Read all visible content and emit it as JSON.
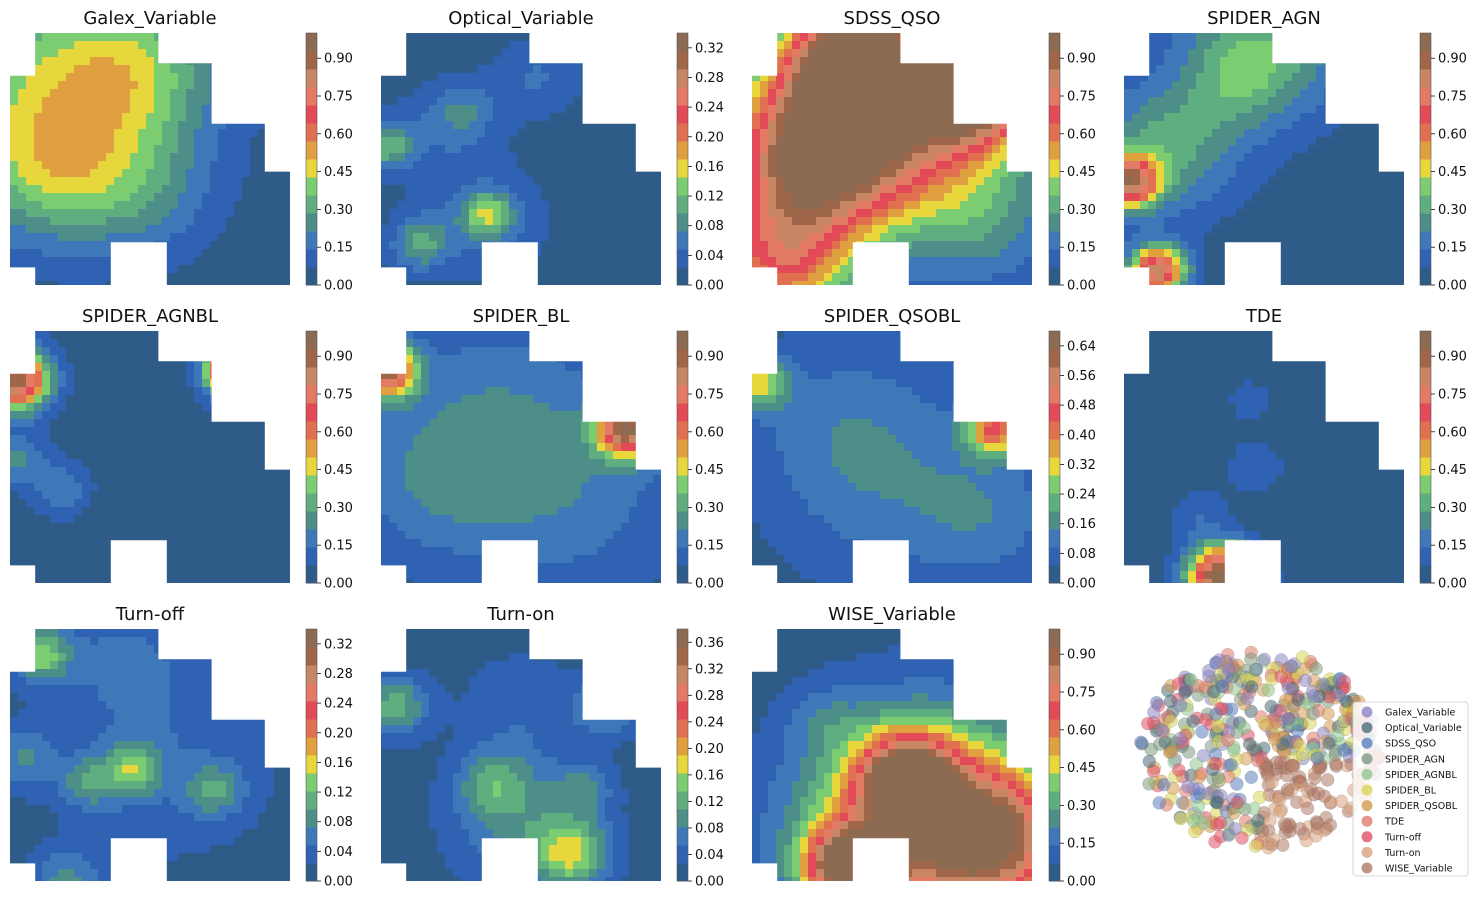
{
  "chart_data": [
    {
      "type": "heatmap",
      "title": "Galex_Variable",
      "colorbar_ticks": [
        "0.00",
        "0.15",
        "0.30",
        "0.45",
        "0.60",
        "0.75",
        "0.90"
      ],
      "vmax": 1.0,
      "hotspots": [
        [
          0.99,
          0.07,
          0.16,
          1.0
        ],
        [
          0.12,
          0.25,
          0.55,
          0.35
        ],
        [
          0.45,
          0.15,
          0.35,
          0.25
        ],
        [
          0.16,
          0.55,
          0.3,
          0.2
        ],
        [
          0.47,
          0.62,
          0.3,
          0.15
        ]
      ]
    },
    {
      "type": "heatmap",
      "title": "Optical_Variable",
      "colorbar_ticks": [
        "0.00",
        "0.04",
        "0.08",
        "0.12",
        "0.16",
        "0.20",
        "0.24",
        "0.28",
        "0.32"
      ],
      "vmax": 0.34,
      "hotspots": [
        [
          0.38,
          0.71,
          0.11,
          0.33
        ],
        [
          0.14,
          0.82,
          0.12,
          0.25
        ],
        [
          0.02,
          0.44,
          0.12,
          0.3
        ],
        [
          0.25,
          0.35,
          0.2,
          0.12
        ],
        [
          0.56,
          0.17,
          0.18,
          0.12
        ],
        [
          0.36,
          0.74,
          0.3,
          0.1
        ],
        [
          0.3,
          0.3,
          0.12,
          0.1
        ]
      ]
    },
    {
      "type": "heatmap",
      "title": "SDSS_QSO",
      "colorbar_ticks": [
        "0.00",
        "0.15",
        "0.30",
        "0.45",
        "0.60",
        "0.75",
        "0.90"
      ],
      "vmax": 1.0,
      "hotspots": [
        [
          0.5,
          0.3,
          0.5,
          0.8
        ],
        [
          0.8,
          0.18,
          0.25,
          1.0
        ],
        [
          0.2,
          0.5,
          0.35,
          0.7
        ],
        [
          0.85,
          0.75,
          0.3,
          0.15
        ],
        [
          0.1,
          0.9,
          0.3,
          0.55
        ],
        [
          0.35,
          0.12,
          0.25,
          0.75
        ]
      ]
    },
    {
      "type": "heatmap",
      "title": "SPIDER_AGN",
      "colorbar_ticks": [
        "0.00",
        "0.15",
        "0.30",
        "0.45",
        "0.60",
        "0.75",
        "0.90"
      ],
      "vmax": 1.0,
      "hotspots": [
        [
          0.02,
          0.58,
          0.12,
          0.75
        ],
        [
          0.12,
          0.93,
          0.12,
          0.8
        ],
        [
          0.15,
          0.45,
          0.3,
          0.28
        ],
        [
          0.5,
          0.05,
          0.35,
          0.3
        ],
        [
          0.4,
          0.2,
          0.2,
          0.12
        ]
      ]
    },
    {
      "type": "heatmap",
      "title": "SPIDER_AGNBL",
      "colorbar_ticks": [
        "0.00",
        "0.15",
        "0.30",
        "0.45",
        "0.60",
        "0.75",
        "0.90"
      ],
      "vmax": 1.0,
      "hotspots": [
        [
          0.02,
          0.19,
          0.14,
          0.9
        ],
        [
          0.8,
          0.15,
          0.12,
          0.95
        ],
        [
          0.03,
          0.5,
          0.12,
          0.2
        ],
        [
          0.18,
          0.62,
          0.12,
          0.18
        ]
      ]
    },
    {
      "type": "heatmap",
      "title": "SPIDER_BL",
      "colorbar_ticks": [
        "0.00",
        "0.15",
        "0.30",
        "0.45",
        "0.60",
        "0.75",
        "0.90"
      ],
      "vmax": 1.0,
      "hotspots": [
        [
          0.02,
          0.15,
          0.12,
          0.85
        ],
        [
          0.88,
          0.38,
          0.13,
          0.85
        ],
        [
          0.4,
          0.3,
          0.5,
          0.14
        ],
        [
          0.65,
          0.65,
          0.5,
          0.14
        ],
        [
          0.15,
          0.6,
          0.35,
          0.12
        ]
      ]
    },
    {
      "type": "heatmap",
      "title": "SPIDER_QSOBL",
      "colorbar_ticks": [
        "0.00",
        "0.08",
        "0.16",
        "0.24",
        "0.32",
        "0.40",
        "0.48",
        "0.56",
        "0.64"
      ],
      "vmax": 0.68,
      "hotspots": [
        [
          0.87,
          0.38,
          0.12,
          0.6
        ],
        [
          0.02,
          0.2,
          0.12,
          0.4
        ],
        [
          0.5,
          0.6,
          0.5,
          0.14
        ],
        [
          0.3,
          0.35,
          0.4,
          0.1
        ],
        [
          0.85,
          0.72,
          0.3,
          0.12
        ]
      ]
    },
    {
      "type": "heatmap",
      "title": "TDE",
      "colorbar_ticks": [
        "0.00",
        "0.15",
        "0.30",
        "0.45",
        "0.60",
        "0.75",
        "0.90"
      ],
      "vmax": 1.0,
      "hotspots": [
        [
          0.35,
          0.96,
          0.14,
          1.0
        ],
        [
          0.47,
          0.53,
          0.12,
          0.1
        ],
        [
          0.27,
          0.72,
          0.12,
          0.1
        ],
        [
          0.45,
          0.27,
          0.1,
          0.08
        ]
      ]
    },
    {
      "type": "heatmap",
      "title": "Turn-off",
      "colorbar_ticks": [
        "0.00",
        "0.04",
        "0.08",
        "0.12",
        "0.16",
        "0.20",
        "0.24",
        "0.28",
        "0.32"
      ],
      "vmax": 0.34,
      "hotspots": [
        [
          0.11,
          0.1,
          0.12,
          0.35
        ],
        [
          0.44,
          0.55,
          0.12,
          0.3
        ],
        [
          0.28,
          0.6,
          0.12,
          0.2
        ],
        [
          0.73,
          0.63,
          0.12,
          0.22
        ],
        [
          0.04,
          0.5,
          0.14,
          0.17
        ],
        [
          0.2,
          0.98,
          0.14,
          0.2
        ],
        [
          0.4,
          0.1,
          0.3,
          0.1
        ],
        [
          0.55,
          0.5,
          0.5,
          0.1
        ]
      ]
    },
    {
      "type": "heatmap",
      "title": "Turn-on",
      "colorbar_ticks": [
        "0.00",
        "0.04",
        "0.08",
        "0.12",
        "0.16",
        "0.20",
        "0.24",
        "0.28",
        "0.32",
        "0.36"
      ],
      "vmax": 0.38,
      "hotspots": [
        [
          0.68,
          0.88,
          0.16,
          0.36
        ],
        [
          0.5,
          0.75,
          0.3,
          0.2
        ],
        [
          0.05,
          0.3,
          0.14,
          0.3
        ],
        [
          0.81,
          0.3,
          0.14,
          0.22
        ],
        [
          0.4,
          0.6,
          0.15,
          0.2
        ],
        [
          0.73,
          0.62,
          0.12,
          0.16
        ],
        [
          0.5,
          0.3,
          0.25,
          0.1
        ]
      ]
    },
    {
      "type": "heatmap",
      "title": "WISE_Variable",
      "colorbar_ticks": [
        "0.00",
        "0.15",
        "0.30",
        "0.45",
        "0.60",
        "0.75",
        "0.90"
      ],
      "vmax": 1.0,
      "hotspots": [
        [
          0.62,
          0.78,
          0.5,
          0.75
        ],
        [
          0.35,
          0.93,
          0.18,
          0.9
        ],
        [
          0.55,
          0.58,
          0.2,
          0.7
        ],
        [
          0.88,
          0.82,
          0.3,
          0.55
        ],
        [
          0.25,
          0.35,
          0.15,
          0.1
        ]
      ]
    },
    {
      "type": "scatter",
      "title": "",
      "legend": [
        "Galex_Variable",
        "Optical_Variable",
        "SDSS_QSO",
        "SPIDER_AGN",
        "SPIDER_AGNBL",
        "SPIDER_BL",
        "SPIDER_QSOBL",
        "TDE",
        "Turn-off",
        "Turn-on",
        "WISE_Variable"
      ],
      "colors": [
        "#8c86c4",
        "#4f6b78",
        "#5c7fbf",
        "#7d9a84",
        "#90c98e",
        "#d8d657",
        "#d69a4e",
        "#e07a6a",
        "#e05264",
        "#d9a27e",
        "#b07a66"
      ]
    }
  ]
}
